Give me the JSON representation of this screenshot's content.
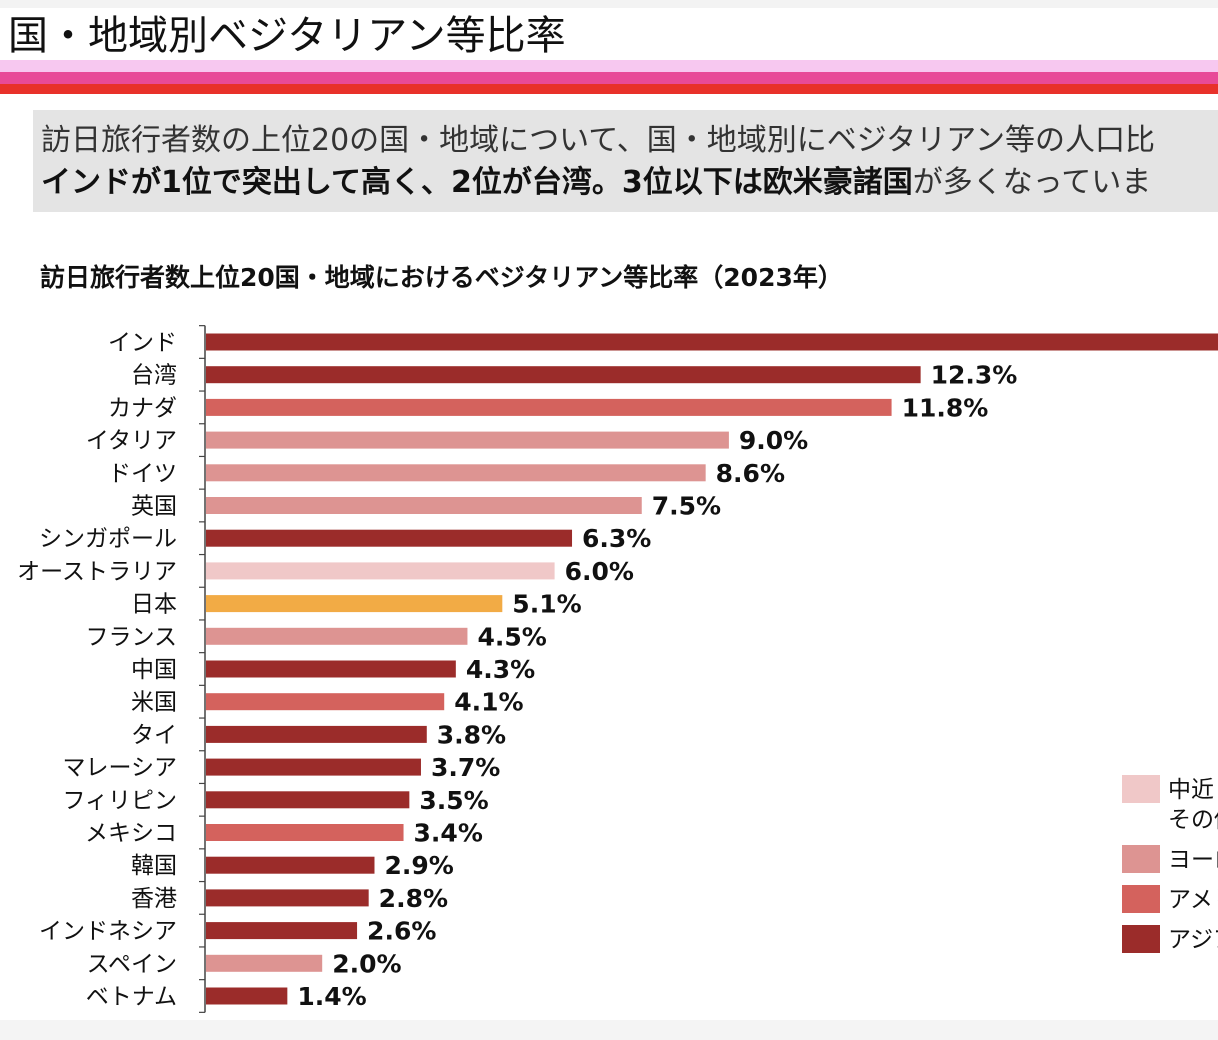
{
  "page": {
    "title": "国・地域別ベジタリアン等比率",
    "summary_line1": "訪日旅行者数の上位20の国・地域について、国・地域別にベジタリアン等の人口比",
    "summary_line2_bold": "インドが1位で突出して高く、2位が台湾。3位以下は欧米豪諸国",
    "summary_line2_rest": "が多くなっていま"
  },
  "chart_data": {
    "type": "bar",
    "orientation": "horizontal",
    "title": "訪日旅行者数上位20国・地域におけるベジタリアン等比率（2023年）",
    "xlim": [
      0,
      17.5
    ],
    "categories": [
      "インド",
      "台湾",
      "カナダ",
      "イタリア",
      "ドイツ",
      "英国",
      "シンガポール",
      "オーストラリア",
      "日本",
      "フランス",
      "中国",
      "米国",
      "タイ",
      "マレーシア",
      "フィリピン",
      "メキシコ",
      "韓国",
      "香港",
      "インドネシア",
      "スペイン",
      "ベトナム"
    ],
    "values": [
      null,
      12.3,
      11.8,
      9.0,
      8.6,
      7.5,
      6.3,
      6.0,
      5.1,
      4.5,
      4.3,
      4.1,
      3.8,
      3.7,
      3.5,
      3.4,
      2.9,
      2.8,
      2.6,
      2.0,
      1.4
    ],
    "labels": [
      "",
      "12.3%",
      "11.8%",
      "9.0%",
      "8.6%",
      "7.5%",
      "6.3%",
      "6.0%",
      "5.1%",
      "4.5%",
      "4.3%",
      "4.1%",
      "3.8%",
      "3.7%",
      "3.5%",
      "3.4%",
      "2.9%",
      "2.8%",
      "2.6%",
      "2.0%",
      "1.4%"
    ],
    "regions": [
      "asia",
      "asia",
      "america",
      "europe",
      "europe",
      "europe",
      "asia",
      "mideast",
      "japan",
      "europe",
      "asia",
      "america",
      "asia",
      "asia",
      "asia",
      "america",
      "asia",
      "asia",
      "asia",
      "europe",
      "asia"
    ],
    "colors": {
      "asia": "#9b2c2a",
      "america": "#d4625d",
      "europe": "#dd9492",
      "mideast": "#f0c8c8",
      "japan": "#f2ab45"
    },
    "legend": [
      {
        "region": "mideast",
        "label1": "中近",
        "label2": "その他"
      },
      {
        "region": "europe",
        "label1": "ヨーロ",
        "label2": ""
      },
      {
        "region": "america",
        "label1": "アメリ",
        "label2": ""
      },
      {
        "region": "asia",
        "label1": "アジア",
        "label2": ""
      }
    ]
  }
}
